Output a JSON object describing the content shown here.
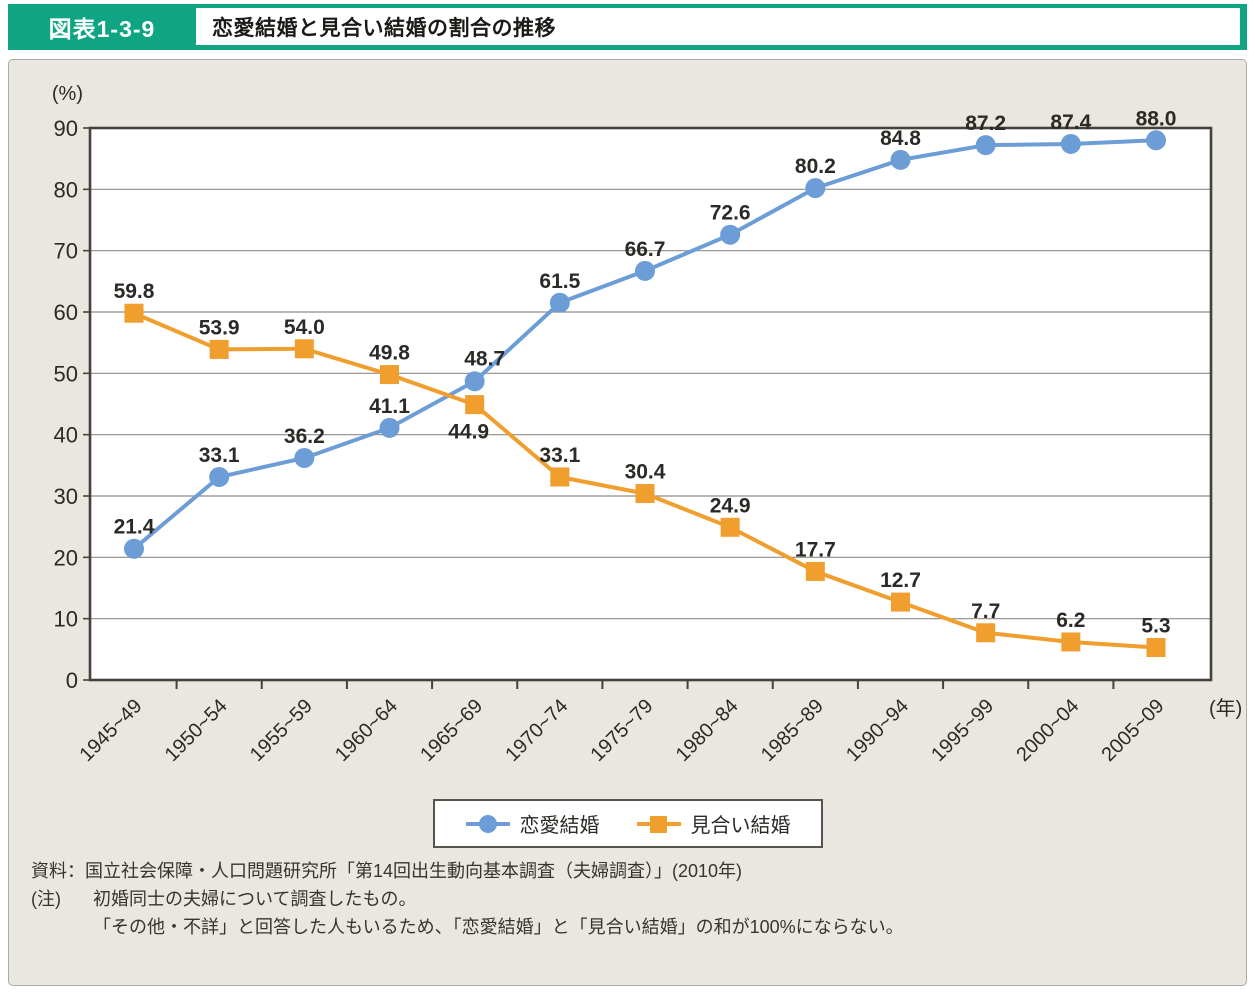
{
  "header": {
    "tag": "図表1-3-9",
    "title": "恋愛結婚と見合い結婚の割合の推移"
  },
  "colors": {
    "green": "#0FA583",
    "panel_bg": "#E9E7DF",
    "blue": "#6C9DD6",
    "orange": "#F09E2D",
    "frame": "#45413B",
    "grid": "#8F8D87",
    "text": "#2B2A26",
    "note_text": "#37342F",
    "border": "#ABAAA4"
  },
  "chart_data": {
    "type": "line",
    "title": "恋愛結婚と見合い結婚の割合の推移",
    "categories": [
      "1945~49",
      "1950~54",
      "1955~59",
      "1960~64",
      "1965~69",
      "1970~74",
      "1975~79",
      "1980~84",
      "1985~89",
      "1990~94",
      "1995~99",
      "2000~04",
      "2005~09"
    ],
    "series": [
      {
        "name": "恋愛結婚",
        "marker": "circle",
        "color_key": "blue",
        "values": [
          21.4,
          33.1,
          36.2,
          41.1,
          48.7,
          61.5,
          66.7,
          72.6,
          80.2,
          84.8,
          87.2,
          87.4,
          88.0
        ]
      },
      {
        "name": "見合い結婚",
        "marker": "square",
        "color_key": "orange",
        "values": [
          59.8,
          53.9,
          54.0,
          49.8,
          44.9,
          33.1,
          30.4,
          24.9,
          17.7,
          12.7,
          7.7,
          6.2,
          5.3
        ]
      }
    ],
    "ylim": [
      0,
      90
    ],
    "ytick_step": 10,
    "y_unit": "(%)",
    "x_unit": "(年)",
    "grid": true,
    "legend_position": "bottom"
  },
  "notes": {
    "source": "資料：国立社会保障・人口問題研究所「第14回出生動向基本調査（夫婦調査）」(2010年)",
    "note_label": "(注)",
    "note_line1": "初婚同士の夫婦について調査したもの。",
    "note_line2": "「その他・不詳」と回答した人もいるため、「恋愛結婚」と「見合い結婚」の和が100%にならない。"
  }
}
